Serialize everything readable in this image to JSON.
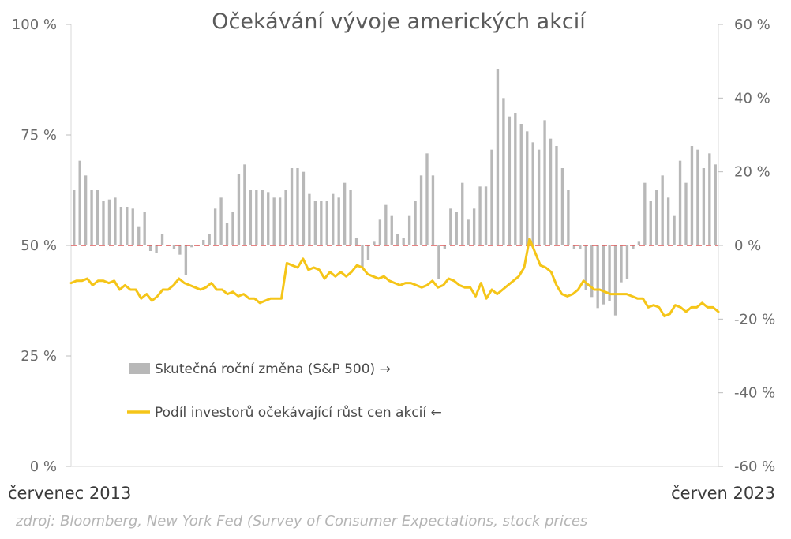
{
  "chart_data": {
    "type": "bar+line",
    "title": "Očekávání vývoje amerických akcií",
    "x_start_label": "červenec 2013",
    "x_end_label": "červen 2023",
    "left_axis": {
      "ticks": [
        "100 %",
        "75 %",
        "50 %",
        "25 %",
        "0 %"
      ],
      "values": [
        100,
        75,
        50,
        25,
        0
      ],
      "ylim": [
        0,
        100
      ]
    },
    "right_axis": {
      "ticks": [
        "60 %",
        "40 %",
        "20 %",
        "0 %",
        "-20 %",
        "-40 %",
        "-60 %"
      ],
      "values": [
        60,
        40,
        20,
        0,
        -20,
        -40,
        -60
      ],
      "ylim": [
        -60,
        60
      ]
    },
    "reference_line": {
      "axis": "right",
      "value": 0,
      "color": "#e05a5a"
    },
    "series": [
      {
        "name": "Skutečná roční změna (S&P 500) →",
        "type": "bar",
        "axis": "right",
        "color": "#b8b8b8",
        "values": [
          15,
          23,
          19,
          15,
          15,
          12,
          12.5,
          13,
          10.5,
          10.5,
          10,
          5,
          9,
          -1.5,
          -2,
          3,
          0,
          -1,
          -2.5,
          -8,
          -0.5,
          0,
          1.5,
          3,
          10,
          13,
          6,
          9,
          19.5,
          22,
          15,
          15,
          15,
          14.5,
          13,
          13,
          15,
          21,
          21,
          20,
          14,
          12,
          12,
          12,
          14,
          13,
          17,
          15,
          2,
          -6,
          -4,
          1,
          7,
          11,
          8,
          3,
          2,
          8,
          12,
          19,
          25,
          19,
          -9,
          -1,
          10,
          9,
          17,
          7,
          10,
          16,
          16,
          26,
          48,
          40,
          35,
          36,
          33,
          31,
          28,
          26,
          34,
          29,
          27,
          21,
          15,
          -1,
          -1,
          -12,
          -14,
          -17,
          -16,
          -15,
          -19,
          -10,
          -9,
          -1,
          1,
          17,
          12,
          15,
          19,
          13,
          8,
          23,
          17,
          27,
          26,
          21,
          25,
          22
        ]
      },
      {
        "name": "Podíl investorů očekávající růst cen akcií ←",
        "type": "line",
        "axis": "left",
        "color": "#f5c518",
        "values": [
          41.5,
          42,
          42,
          42.5,
          41,
          42,
          42,
          41.5,
          42,
          40,
          41,
          40,
          40,
          38,
          39,
          37.5,
          38.5,
          40,
          40,
          41,
          42.5,
          41.5,
          41,
          40.5,
          40,
          40.5,
          41.5,
          40,
          40,
          39,
          39.5,
          38.5,
          39,
          38,
          38,
          37,
          37.5,
          38,
          38,
          38,
          46,
          45.5,
          45,
          47,
          44.5,
          45,
          44.5,
          42.5,
          44,
          43,
          44,
          43,
          44,
          45.5,
          45,
          43.5,
          43,
          42.5,
          43,
          42,
          41.5,
          41,
          41.5,
          41.5,
          41,
          40.5,
          41,
          42,
          40.5,
          41,
          42.5,
          42,
          41,
          40.5,
          40.5,
          38.5,
          41.5,
          38,
          40,
          39,
          40,
          41,
          42,
          43,
          45,
          51.5,
          48.5,
          45.5,
          45,
          44,
          41,
          39,
          38.5,
          39,
          40,
          42,
          41,
          40,
          40,
          39.5,
          39,
          39,
          39,
          39,
          38.5,
          38,
          38,
          36,
          36.5,
          36,
          34,
          34.5,
          36.5,
          36,
          35,
          36,
          36,
          37,
          36,
          36,
          35
        ]
      }
    ],
    "legend": {
      "position": "center-left"
    }
  },
  "source": "zdroj: Bloomberg, New York Fed (Survey of Consumer Expectations, stock prices"
}
